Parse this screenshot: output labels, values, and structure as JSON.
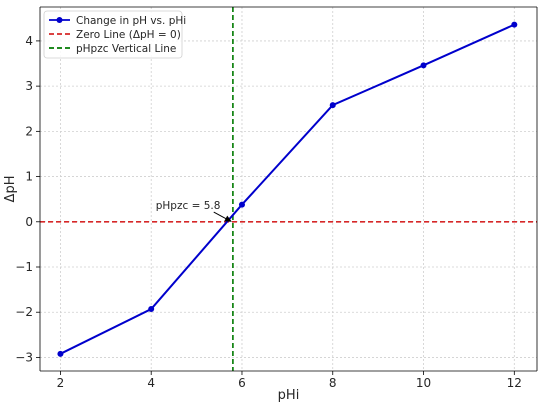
{
  "chart_data": {
    "type": "line",
    "title": "",
    "xlabel": "pHi",
    "ylabel": "ΔpH",
    "xlim": [
      1.55,
      12.5
    ],
    "ylim": [
      -3.3,
      4.75
    ],
    "xticks": [
      2,
      4,
      6,
      8,
      10,
      12
    ],
    "xtick_labels": [
      "2",
      "4",
      "6",
      "8",
      "10",
      "12"
    ],
    "yticks": [
      -3,
      -2,
      -1,
      0,
      1,
      2,
      3,
      4
    ],
    "ytick_labels": [
      "−3",
      "−2",
      "−1",
      "0",
      "1",
      "2",
      "3",
      "4"
    ],
    "grid": true,
    "legend_placement": "top-left",
    "series": [
      {
        "name": "Change in pH vs. pHi",
        "color": "#0000cc",
        "marker": "circle",
        "line": "solid",
        "x": [
          2,
          4,
          6,
          8,
          10,
          12
        ],
        "y": [
          -2.92,
          -1.93,
          0.38,
          2.58,
          3.46,
          4.36
        ]
      }
    ],
    "reference_lines": [
      {
        "name": "Zero Line (ΔpH = 0)",
        "orientation": "horizontal",
        "value": 0,
        "color": "#d62728",
        "style": "dashed"
      },
      {
        "name": "pHpzc Vertical Line",
        "orientation": "vertical",
        "value": 5.8,
        "color": "#007a00",
        "style": "dashed"
      }
    ],
    "annotations": [
      {
        "text": "pHpzc = 5.8",
        "x": 5.8,
        "y": 0,
        "text_x": 4.1,
        "text_y": 0.28
      }
    ]
  }
}
